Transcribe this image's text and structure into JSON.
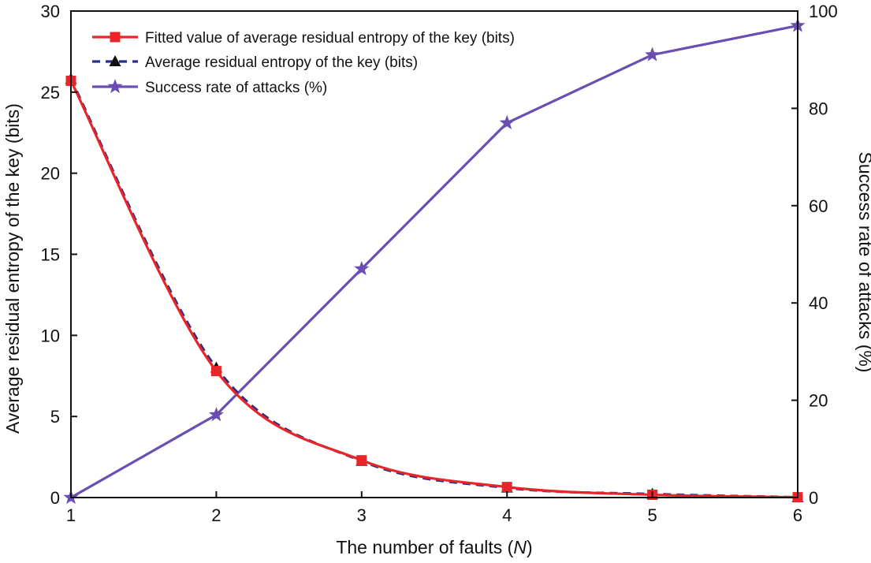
{
  "chart_data": {
    "type": "line",
    "title": "",
    "xlabel": "The number of faults (",
    "xlabel_italic": "N",
    "xlabel_suffix": ")",
    "ylabel": "Average residual entropy of the key (bits)",
    "y2label": "Success rate of attacks (%)",
    "x": [
      1,
      2,
      3,
      4,
      5,
      6
    ],
    "xlim": [
      1,
      6
    ],
    "ylim": [
      0,
      30
    ],
    "y2lim": [
      0,
      100
    ],
    "xticks": [
      1,
      2,
      3,
      4,
      5,
      6
    ],
    "yticks": [
      0,
      5,
      10,
      15,
      20,
      25,
      30
    ],
    "y2ticks": [
      0,
      20,
      40,
      60,
      80,
      100
    ],
    "grid": false,
    "legend_position": "top-left",
    "series": [
      {
        "name": "Fitted value of average residual entropy of the key (bits)",
        "axis": "left",
        "color": "#e8262a",
        "line_style": "solid",
        "marker": "square",
        "smooth": true,
        "values": [
          25.7,
          7.8,
          2.3,
          0.65,
          0.17,
          0.02
        ]
      },
      {
        "name": "Average residual entropy of the key (bits)",
        "axis": "left",
        "color": "#2b2e83",
        "marker_color": "#111111",
        "line_style": "dashed",
        "marker": "triangle",
        "smooth": true,
        "values": [
          25.8,
          8.0,
          2.25,
          0.6,
          0.22,
          0.02
        ]
      },
      {
        "name": "Success rate of attacks (%)",
        "axis": "right",
        "color": "#6a4fb3",
        "line_style": "solid",
        "marker": "star",
        "smooth": false,
        "values": [
          0,
          17,
          47,
          77,
          91,
          97
        ]
      }
    ]
  }
}
